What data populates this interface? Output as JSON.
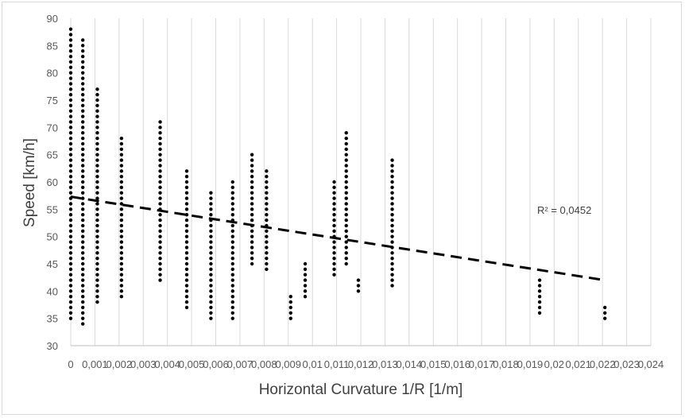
{
  "chart_data": {
    "type": "scatter",
    "title": "",
    "xlabel": "Horizontal Curvature 1/R [1/m]",
    "ylabel": "Speed [km/h]",
    "xlim": [
      0,
      0.024
    ],
    "ylim": [
      30,
      90
    ],
    "x_tick_values": [
      0,
      0.001,
      0.002,
      0.003,
      0.004,
      0.005,
      0.006,
      0.007,
      0.008,
      0.009,
      0.01,
      0.011,
      0.012,
      0.013,
      0.014,
      0.015,
      0.016,
      0.017,
      0.018,
      0.019,
      0.02,
      0.021,
      0.022,
      0.023,
      0.024
    ],
    "x_tick_labels": [
      "0",
      "0,001",
      "0,002",
      "0,003",
      "0,004",
      "0,005",
      "0,006",
      "0,007",
      "0,008",
      "0,009",
      "0,01",
      "0,011",
      "0,012",
      "0,013",
      "0,014",
      "0,015",
      "0,016",
      "0,017",
      "0,018",
      "0,019",
      "0,02",
      "0,021",
      "0,022",
      "0,023",
      "0,024"
    ],
    "y_tick_values": [
      30,
      35,
      40,
      45,
      50,
      55,
      60,
      65,
      70,
      75,
      80,
      85,
      90
    ],
    "y_tick_labels": [
      "30",
      "35",
      "40",
      "45",
      "50",
      "55",
      "60",
      "65",
      "70",
      "75",
      "80",
      "85",
      "90"
    ],
    "grid": "vertical-major",
    "marker_color": "#000000",
    "trendline": {
      "type": "linear",
      "x": [
        0,
        0.0221
      ],
      "y": [
        57.3,
        42.0
      ],
      "style": "dashed",
      "color": "#000000"
    },
    "annotation": "R² = 0,0452",
    "series": [
      {
        "x": [
          0,
          0,
          0,
          0,
          0,
          0,
          0,
          0,
          0,
          0,
          0,
          0,
          0,
          0,
          0,
          0,
          0,
          0,
          0,
          0,
          0,
          0,
          0,
          0,
          0,
          0,
          0,
          0,
          0,
          0,
          0,
          0,
          0,
          0,
          0,
          0,
          0,
          0,
          0,
          0,
          0,
          0,
          0,
          0,
          0,
          0,
          0,
          0,
          0,
          0,
          0,
          0,
          0,
          0
        ],
        "y": [
          35,
          36,
          37,
          38,
          39,
          40,
          41,
          42,
          43,
          44,
          45,
          46,
          47,
          48,
          49,
          50,
          51,
          52,
          53,
          54,
          55,
          56,
          57,
          58,
          59,
          60,
          61,
          62,
          63,
          64,
          65,
          66,
          67,
          68,
          69,
          70,
          71,
          72,
          73,
          74,
          75,
          76,
          77,
          78,
          79,
          80,
          81,
          82,
          83,
          84,
          85,
          86,
          87,
          88
        ]
      },
      {
        "x": [
          0.0011,
          0.0011,
          0.0011,
          0.0011,
          0.0011,
          0.0011,
          0.0011,
          0.0011,
          0.0011,
          0.0011,
          0.0011,
          0.0011,
          0.0011,
          0.0011,
          0.0011,
          0.0011,
          0.0011,
          0.0011,
          0.0011,
          0.0011,
          0.0011,
          0.0011,
          0.0011,
          0.0011,
          0.0011,
          0.0011,
          0.0011,
          0.0011,
          0.0011,
          0.0011,
          0.0011,
          0.0011,
          0.0011,
          0.0011,
          0.0011,
          0.0011,
          0.0011,
          0.0011,
          0.0011,
          0.0011
        ],
        "y": [
          38,
          39,
          40,
          41,
          42,
          43,
          44,
          45,
          46,
          47,
          48,
          49,
          50,
          51,
          52,
          53,
          54,
          55,
          56,
          57,
          58,
          59,
          60,
          61,
          62,
          63,
          64,
          65,
          66,
          67,
          68,
          69,
          70,
          71,
          72,
          73,
          74,
          75,
          76,
          77
        ]
      },
      {
        "x": [
          0.0005,
          0.0005,
          0.0005,
          0.0005,
          0.0005,
          0.0005,
          0.0005,
          0.0005,
          0.0005,
          0.0005,
          0.0005,
          0.0005,
          0.0005,
          0.0005,
          0.0005,
          0.0005,
          0.0005,
          0.0005,
          0.0005,
          0.0005,
          0.0005,
          0.0005,
          0.0005,
          0.0005,
          0.0005,
          0.0005,
          0.0005,
          0.0005,
          0.0005,
          0.0005,
          0.0005,
          0.0005,
          0.0005,
          0.0005,
          0.0005,
          0.0005,
          0.0005,
          0.0005,
          0.0005,
          0.0005,
          0.0005
        ],
        "y": [
          34,
          35,
          36,
          37,
          38,
          39,
          40,
          41,
          42,
          43,
          44,
          45,
          46,
          47,
          48,
          49,
          50,
          51,
          52,
          53,
          54,
          55,
          56,
          57,
          58,
          59,
          60,
          61,
          62,
          63,
          64,
          65,
          66,
          67,
          68,
          69,
          70,
          71,
          72,
          73,
          74
        ]
      },
      {
        "x": [
          0.0005,
          0.0005,
          0.0005,
          0.0005,
          0.0005,
          0.0005,
          0.0005,
          0.0005,
          0.0005,
          0.0005,
          0.0005,
          0.0005
        ],
        "y": [
          75,
          76,
          77,
          78,
          79,
          80,
          81,
          82,
          83,
          84,
          85,
          86
        ]
      },
      {
        "x": [
          0.0021,
          0.0021,
          0.0021,
          0.0021,
          0.0021,
          0.0021,
          0.0021,
          0.0021,
          0.0021,
          0.0021,
          0.0021,
          0.0021,
          0.0021,
          0.0021,
          0.0021,
          0.0021,
          0.0021,
          0.0021,
          0.0021,
          0.0021,
          0.0021,
          0.0021,
          0.0021,
          0.0021,
          0.0021,
          0.0021,
          0.0021,
          0.0021,
          0.0021,
          0.0021
        ],
        "y": [
          39,
          40,
          41,
          42,
          43,
          44,
          45,
          46,
          47,
          48,
          49,
          50,
          51,
          52,
          53,
          54,
          55,
          56,
          57,
          58,
          59,
          60,
          61,
          62,
          63,
          64,
          65,
          66,
          67,
          68
        ]
      },
      {
        "x": [
          0.0037,
          0.0037,
          0.0037,
          0.0037,
          0.0037,
          0.0037,
          0.0037,
          0.0037,
          0.0037,
          0.0037,
          0.0037,
          0.0037,
          0.0037,
          0.0037,
          0.0037,
          0.0037,
          0.0037,
          0.0037,
          0.0037,
          0.0037,
          0.0037,
          0.0037,
          0.0037,
          0.0037,
          0.0037,
          0.0037,
          0.0037,
          0.0037,
          0.0037,
          0.0037
        ],
        "y": [
          42,
          43,
          44,
          45,
          46,
          47,
          48,
          49,
          50,
          51,
          52,
          53,
          54,
          55,
          56,
          57,
          58,
          59,
          60,
          61,
          62,
          63,
          64,
          65,
          66,
          67,
          68,
          69,
          70,
          71
        ]
      },
      {
        "x": [
          0.0048,
          0.0048,
          0.0048,
          0.0048,
          0.0048,
          0.0048,
          0.0048,
          0.0048,
          0.0048,
          0.0048,
          0.0048,
          0.0048,
          0.0048,
          0.0048,
          0.0048,
          0.0048,
          0.0048,
          0.0048,
          0.0048,
          0.0048,
          0.0048,
          0.0048,
          0.0048,
          0.0048,
          0.0048,
          0.0048
        ],
        "y": [
          37,
          38,
          39,
          40,
          41,
          42,
          43,
          44,
          45,
          46,
          47,
          48,
          49,
          50,
          51,
          52,
          53,
          54,
          55,
          56,
          57,
          58,
          59,
          60,
          61,
          62
        ]
      },
      {
        "x": [
          0.0058,
          0.0058,
          0.0058,
          0.0058,
          0.0058,
          0.0058,
          0.0058,
          0.0058,
          0.0058,
          0.0058,
          0.0058,
          0.0058,
          0.0058,
          0.0058,
          0.0058,
          0.0058,
          0.0058,
          0.0058,
          0.0058,
          0.0058,
          0.0058,
          0.0058,
          0.0058,
          0.0058
        ],
        "y": [
          35,
          36,
          37,
          38,
          39,
          40,
          41,
          42,
          43,
          44,
          45,
          46,
          47,
          48,
          49,
          50,
          51,
          52,
          53,
          54,
          55,
          56,
          57,
          58
        ]
      },
      {
        "x": [
          0.0067,
          0.0067,
          0.0067,
          0.0067,
          0.0067,
          0.0067,
          0.0067,
          0.0067,
          0.0067,
          0.0067,
          0.0067,
          0.0067,
          0.0067,
          0.0067,
          0.0067,
          0.0067,
          0.0067,
          0.0067,
          0.0067,
          0.0067,
          0.0067,
          0.0067,
          0.0067,
          0.0067,
          0.0067,
          0.0067
        ],
        "y": [
          35,
          36,
          37,
          38,
          39,
          40,
          41,
          42,
          43,
          44,
          45,
          46,
          47,
          48,
          49,
          50,
          51,
          52,
          53,
          54,
          55,
          56,
          57,
          58,
          59,
          60
        ]
      },
      {
        "x": [
          0.0075,
          0.0075,
          0.0075,
          0.0075,
          0.0075,
          0.0075,
          0.0075,
          0.0075,
          0.0075,
          0.0075,
          0.0075,
          0.0075,
          0.0075,
          0.0075,
          0.0075,
          0.0075,
          0.0075,
          0.0075,
          0.0075,
          0.0075,
          0.0075
        ],
        "y": [
          45,
          46,
          47,
          48,
          49,
          50,
          51,
          52,
          53,
          54,
          55,
          56,
          57,
          58,
          59,
          60,
          61,
          62,
          63,
          64,
          65
        ]
      },
      {
        "x": [
          0.0081,
          0.0081,
          0.0081,
          0.0081,
          0.0081,
          0.0081,
          0.0081,
          0.0081,
          0.0081,
          0.0081,
          0.0081,
          0.0081,
          0.0081,
          0.0081,
          0.0081,
          0.0081,
          0.0081,
          0.0081,
          0.0081
        ],
        "y": [
          44,
          45,
          46,
          47,
          48,
          49,
          50,
          51,
          52,
          53,
          54,
          55,
          56,
          57,
          58,
          59,
          60,
          61,
          62
        ]
      },
      {
        "x": [
          0.0091,
          0.0091,
          0.0091,
          0.0091,
          0.0091
        ],
        "y": [
          35,
          36,
          37,
          38,
          39
        ]
      },
      {
        "x": [
          0.0097,
          0.0097,
          0.0097,
          0.0097,
          0.0097,
          0.0097,
          0.0097
        ],
        "y": [
          39,
          40,
          41,
          42,
          43,
          44,
          45
        ]
      },
      {
        "x": [
          0.0109,
          0.0109,
          0.0109,
          0.0109,
          0.0109,
          0.0109,
          0.0109,
          0.0109,
          0.0109,
          0.0109,
          0.0109,
          0.0109,
          0.0109,
          0.0109,
          0.0109,
          0.0109,
          0.0109,
          0.0109
        ],
        "y": [
          43,
          44,
          45,
          46,
          47,
          48,
          49,
          50,
          51,
          52,
          53,
          54,
          55,
          56,
          57,
          58,
          59,
          60
        ]
      },
      {
        "x": [
          0.0114,
          0.0114,
          0.0114,
          0.0114,
          0.0114,
          0.0114,
          0.0114,
          0.0114,
          0.0114,
          0.0114,
          0.0114,
          0.0114,
          0.0114,
          0.0114,
          0.0114,
          0.0114,
          0.0114,
          0.0114,
          0.0114,
          0.0114,
          0.0114,
          0.0114,
          0.0114,
          0.0114,
          0.0114
        ],
        "y": [
          45,
          46,
          47,
          48,
          49,
          50,
          51,
          52,
          53,
          54,
          55,
          56,
          57,
          58,
          59,
          60,
          61,
          62,
          63,
          64,
          65,
          66,
          67,
          68,
          69
        ]
      },
      {
        "x": [
          0.0119,
          0.0119,
          0.0119
        ],
        "y": [
          40,
          41,
          42
        ]
      },
      {
        "x": [
          0.0133,
          0.0133,
          0.0133,
          0.0133,
          0.0133,
          0.0133,
          0.0133,
          0.0133,
          0.0133,
          0.0133,
          0.0133,
          0.0133,
          0.0133,
          0.0133,
          0.0133,
          0.0133,
          0.0133,
          0.0133,
          0.0133,
          0.0133,
          0.0133,
          0.0133,
          0.0133,
          0.0133
        ],
        "y": [
          41,
          42,
          43,
          44,
          45,
          46,
          47,
          48,
          49,
          50,
          51,
          52,
          53,
          54,
          55,
          56,
          57,
          58,
          59,
          60,
          61,
          62,
          63,
          64
        ]
      },
      {
        "x": [
          0.0194,
          0.0194,
          0.0194,
          0.0194,
          0.0194,
          0.0194,
          0.0194
        ],
        "y": [
          36,
          37,
          38,
          39,
          40,
          41,
          42
        ]
      },
      {
        "x": [
          0.0221,
          0.0221,
          0.0221
        ],
        "y": [
          35,
          36,
          37
        ]
      }
    ]
  }
}
